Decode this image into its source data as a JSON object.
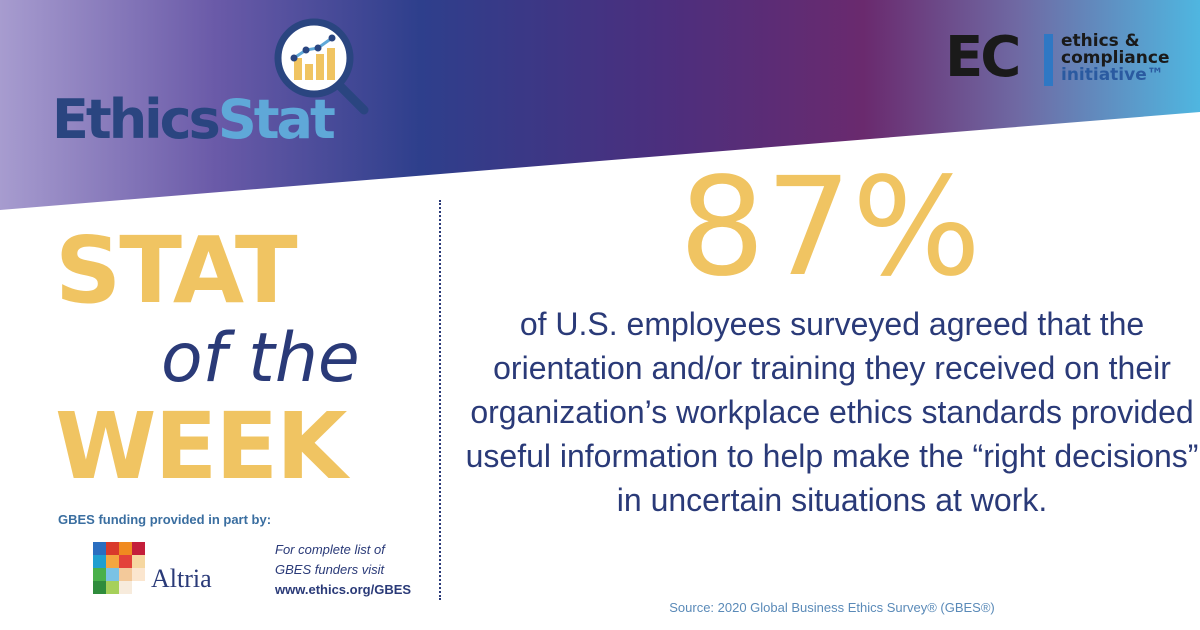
{
  "brand": {
    "ethicsstat_part1": "Ethics",
    "ethicsstat_part2": "Stat",
    "eci_letters": "EC",
    "eci_line1": "ethics &",
    "eci_line2": "compliance",
    "eci_line3": "initiative™"
  },
  "stat_heading": {
    "line1": "STAT",
    "line2": "of the",
    "line3": "WEEK"
  },
  "stat": {
    "value": "87%",
    "description": "of U.S. employees surveyed agreed that the orientation and/or training they received on their organization’s workplace ethics standards provided useful information to help make the “right decisions” in uncertain situations at work.",
    "source": "Source: 2020 Global Business Ethics Survey® (GBES®)"
  },
  "funding": {
    "label": "GBES funding provided in part by:",
    "sponsor": "Altria",
    "note_line1": "For complete list of",
    "note_line2": "GBES funders visit",
    "url": "www.ethics.org/GBES"
  },
  "colors": {
    "gold": "#f0c462",
    "navy": "#2a3a78",
    "light_blue": "#5fa8d8"
  }
}
